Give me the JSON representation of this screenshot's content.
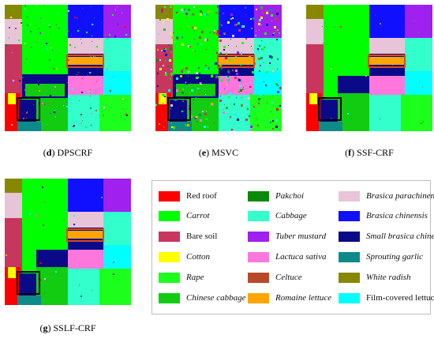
{
  "panels": [
    {
      "id": "d",
      "letter": "d",
      "name": "DPSCRF"
    },
    {
      "id": "e",
      "letter": "e",
      "name": "MSVC"
    },
    {
      "id": "f",
      "letter": "f",
      "name": "SSF-CRF"
    },
    {
      "id": "g",
      "letter": "g",
      "name": "SSLF-CRF"
    }
  ],
  "legend": [
    {
      "label": "Red roof",
      "color": "#ff0000",
      "italic": false
    },
    {
      "label": "Carrot",
      "color": "#00ff00",
      "italic": true
    },
    {
      "label": "Bare soil",
      "color": "#c8365e",
      "italic": false
    },
    {
      "label": "Cotton",
      "color": "#ffff00",
      "italic": true
    },
    {
      "label": "Rape",
      "color": "#1cff1c",
      "italic": true
    },
    {
      "label": "Chinese cabbage",
      "color": "#11cc11",
      "italic": true
    },
    {
      "label": "Pakchoi",
      "color": "#0a8a0a",
      "italic": true
    },
    {
      "label": "Cabbage",
      "color": "#33ffcc",
      "italic": true
    },
    {
      "label": "Tuber mustard",
      "color": "#a020f0",
      "italic": true
    },
    {
      "label": "Lactuca sativa",
      "color": "#ff77dd",
      "italic": true
    },
    {
      "label": "Celtuce",
      "color": "#b84a2a",
      "italic": true
    },
    {
      "label": "Romaine lettuce",
      "color": "#ffa500",
      "italic": true
    },
    {
      "label": "Brasica parachinensis",
      "color": "#e8c4d8",
      "italic": true
    },
    {
      "label": "Brasica chinensis",
      "color": "#1010ff",
      "italic": true
    },
    {
      "label": "Small brasica chinensis",
      "color": "#0a0a88",
      "italic": true
    },
    {
      "label": "Sprouting garlic",
      "color": "#0f8a8a",
      "italic": true
    },
    {
      "label": "White radish",
      "color": "#888800",
      "italic": true
    },
    {
      "label": "Film-covered lettuce",
      "color": "#00ffff",
      "italic": false
    }
  ]
}
